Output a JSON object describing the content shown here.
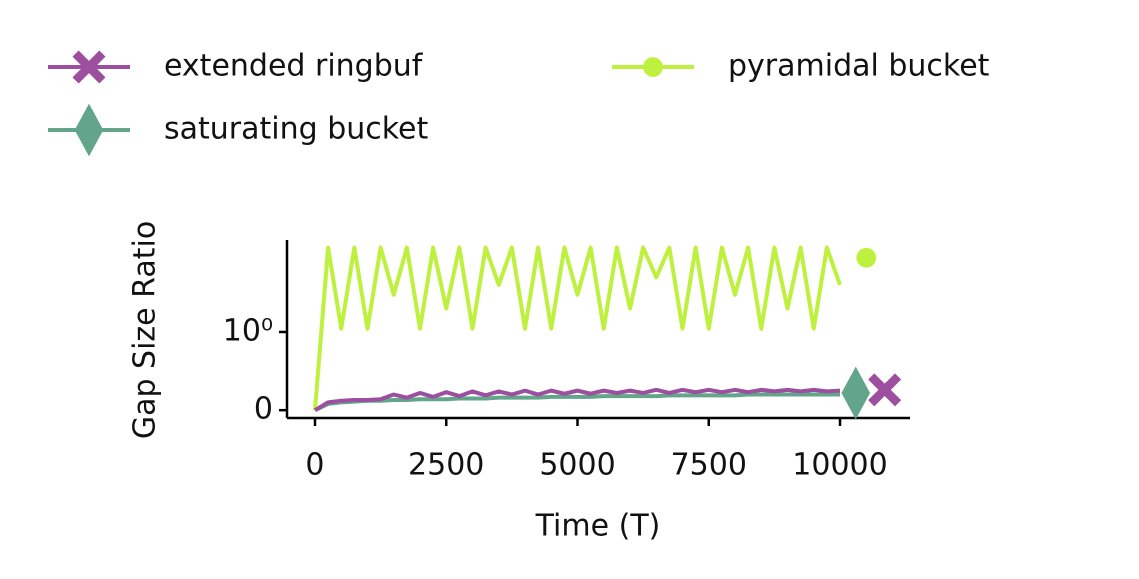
{
  "chart_data": {
    "type": "line",
    "xlabel": "Time (T)",
    "ylabel": "Gap Size Ratio",
    "xlim": [
      -533,
      11333
    ],
    "xticks": [
      0,
      2500,
      5000,
      7500,
      10000
    ],
    "ylim": [
      -0.1,
      15
    ],
    "yscale": "symlog",
    "yticks": [
      0,
      {
        "value": 1,
        "label": "10⁰"
      }
    ],
    "x": [
      0,
      250,
      500,
      750,
      1000,
      1250,
      1500,
      1750,
      2000,
      2250,
      2500,
      2750,
      3000,
      3250,
      3500,
      3750,
      4000,
      4250,
      4500,
      4750,
      5000,
      5250,
      5500,
      5750,
      6000,
      6250,
      6500,
      6750,
      7000,
      7250,
      7500,
      7750,
      8000,
      8250,
      8500,
      8750,
      9000,
      9250,
      9500,
      9750,
      10000
    ],
    "series": [
      {
        "name": "extended ringbuf",
        "color": "#9b4f9e",
        "marker": "x",
        "values": [
          0,
          0.1,
          0.12,
          0.13,
          0.13,
          0.14,
          0.2,
          0.16,
          0.22,
          0.17,
          0.23,
          0.18,
          0.24,
          0.19,
          0.24,
          0.2,
          0.25,
          0.2,
          0.25,
          0.21,
          0.25,
          0.21,
          0.25,
          0.22,
          0.25,
          0.22,
          0.26,
          0.22,
          0.26,
          0.23,
          0.26,
          0.23,
          0.26,
          0.23,
          0.26,
          0.24,
          0.26,
          0.24,
          0.26,
          0.24,
          0.25
        ],
        "end_point": {
          "x": 10850,
          "y": 0.26
        }
      },
      {
        "name": "saturating bucket",
        "color": "#62a58a",
        "marker": "diamond",
        "values": [
          0,
          0.08,
          0.1,
          0.11,
          0.12,
          0.12,
          0.13,
          0.13,
          0.14,
          0.14,
          0.14,
          0.15,
          0.15,
          0.15,
          0.16,
          0.16,
          0.16,
          0.16,
          0.17,
          0.17,
          0.17,
          0.17,
          0.18,
          0.18,
          0.18,
          0.18,
          0.18,
          0.19,
          0.19,
          0.19,
          0.19,
          0.19,
          0.19,
          0.2,
          0.2,
          0.2,
          0.2,
          0.2,
          0.2,
          0.2,
          0.2
        ],
        "end_point": {
          "x": 10300,
          "y": 0.22
        }
      },
      {
        "name": "pyramidal bucket",
        "color": "#bdf13d",
        "marker": "circle",
        "values": [
          0,
          12,
          1.1,
          12,
          1.1,
          12,
          3,
          12,
          1.1,
          12,
          2,
          12,
          1.1,
          12,
          4,
          12,
          1.1,
          12,
          1.1,
          12,
          3,
          12,
          1.1,
          12,
          2,
          12,
          5,
          12,
          1.1,
          12,
          1.1,
          12,
          3,
          12,
          1.1,
          12,
          2,
          12,
          1.1,
          12,
          4
        ],
        "end_point": {
          "x": 10500,
          "y": 8.9
        }
      }
    ]
  }
}
